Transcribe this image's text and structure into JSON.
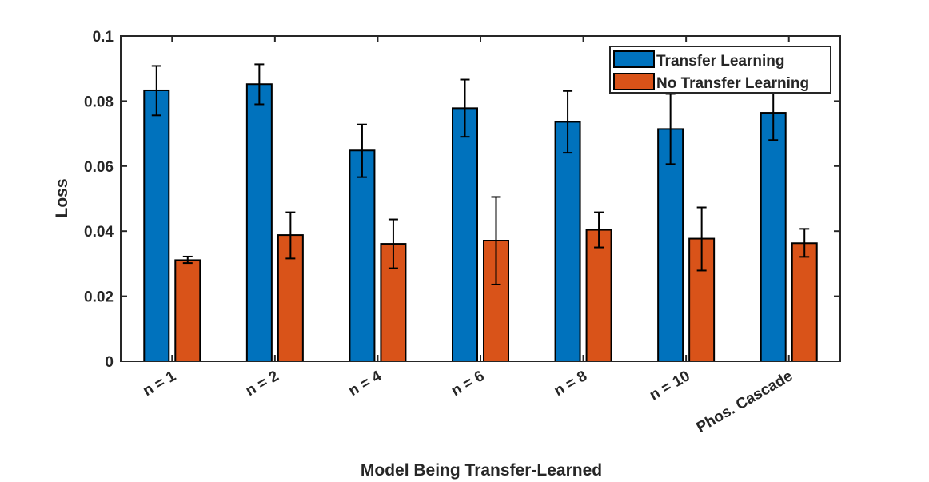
{
  "chart_data": {
    "type": "bar",
    "title": "",
    "xlabel": "Model Being Transfer-Learned",
    "ylabel": "Loss",
    "ylim": [
      0,
      0.1
    ],
    "yticks": [
      "0",
      "0.02",
      "0.04",
      "0.06",
      "0.08",
      "0.1"
    ],
    "categories": [
      "n = 1",
      "n = 2",
      "n = 4",
      "n = 6",
      "n = 8",
      "n = 10",
      "Phos. Cascade"
    ],
    "series": [
      {
        "name": "Transfer Learning",
        "color": "#0072BD",
        "values": [
          0.0833,
          0.0852,
          0.0648,
          0.0778,
          0.0736,
          0.0714,
          0.0764
        ],
        "err_low": [
          0.0756,
          0.079,
          0.0566,
          0.069,
          0.0641,
          0.0606,
          0.068
        ],
        "err_high": [
          0.0908,
          0.0913,
          0.0728,
          0.0866,
          0.0831,
          0.0822,
          0.0848
        ]
      },
      {
        "name": "No Transfer Learning",
        "color": "#D95319",
        "values": [
          0.0311,
          0.0388,
          0.0361,
          0.0371,
          0.0404,
          0.0377,
          0.0363
        ],
        "err_low": [
          0.0302,
          0.0316,
          0.0286,
          0.0236,
          0.035,
          0.0279,
          0.0321
        ],
        "err_high": [
          0.0322,
          0.0458,
          0.0436,
          0.0505,
          0.0458,
          0.0473,
          0.0407
        ]
      }
    ],
    "grid": false,
    "legend_position": "top-right"
  }
}
